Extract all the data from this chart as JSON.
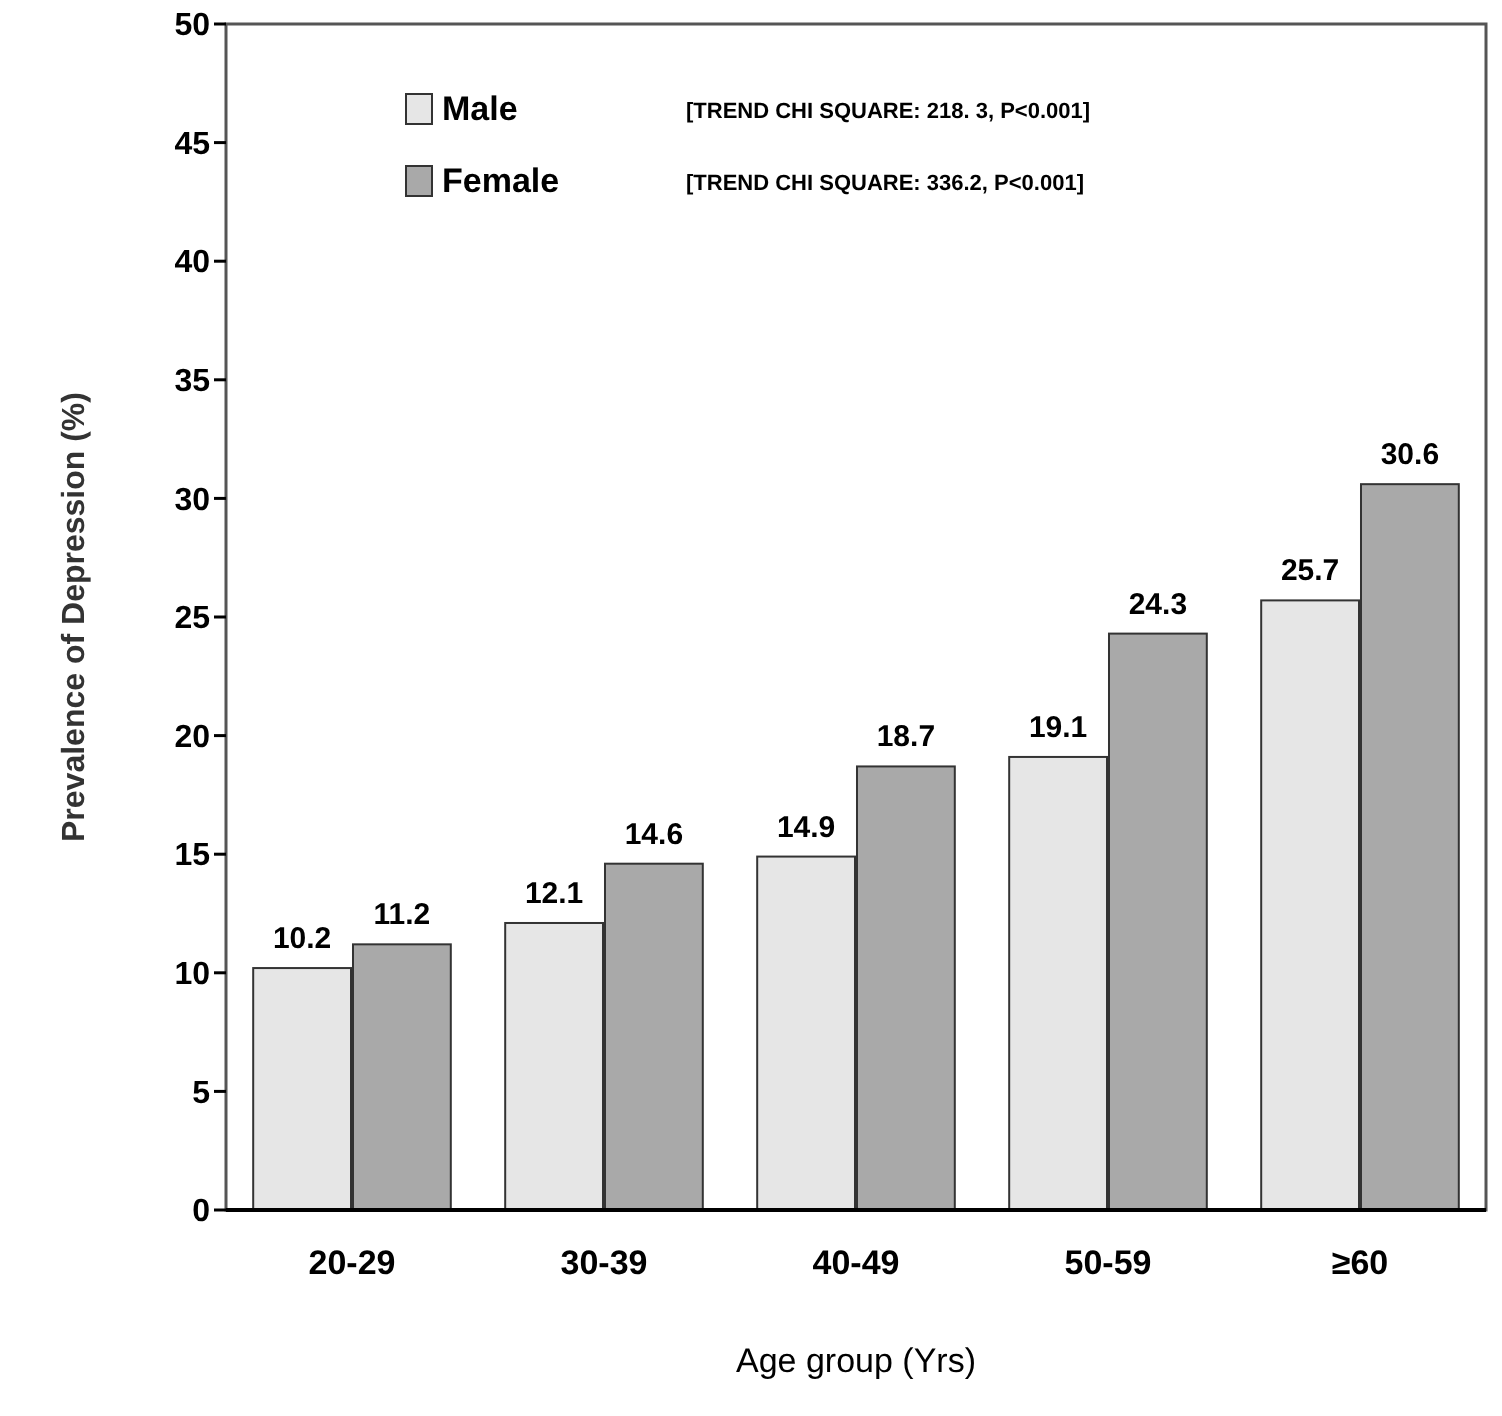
{
  "chart_data": {
    "type": "bar",
    "xlabel": "Age group (Yrs)",
    "ylabel": "Prevalence of Depression (%)",
    "categories": [
      "20-29",
      "30-39",
      "40-49",
      "50-59",
      "≥60"
    ],
    "series": [
      {
        "name": "Male",
        "color": "#e6e6e6",
        "values": [
          10.2,
          12.1,
          14.9,
          19.1,
          25.7
        ]
      },
      {
        "name": "Female",
        "color": "#a9a9a9",
        "values": [
          11.2,
          14.6,
          18.7,
          24.3,
          30.6
        ]
      }
    ],
    "ylim": [
      0,
      50
    ],
    "yticks": [
      0,
      5,
      10,
      15,
      20,
      25,
      30,
      35,
      40,
      45,
      50
    ],
    "data_labels": true,
    "legend": "top left",
    "grid": false,
    "annotations": [
      "[TREND CHI SQUARE: 218. 3, P<0.001]",
      "[TREND CHI SQUARE: 336.2, P<0.001]"
    ]
  }
}
